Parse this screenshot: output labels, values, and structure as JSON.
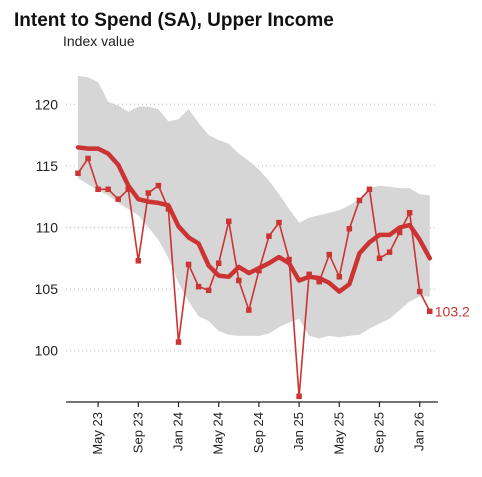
{
  "chart_data": {
    "type": "line",
    "title": "Intent to Spend (SA), Upper Income",
    "ylabel": "Index value",
    "ylim": [
      96,
      124
    ],
    "yticks": [
      100,
      105,
      110,
      115,
      120
    ],
    "xticks": [
      "May 23",
      "Sep 23",
      "Jan 24",
      "May 24",
      "Sep 24",
      "Jan 25",
      "May 25",
      "Sep 25",
      "Jan 26"
    ],
    "x": [
      "Mar 23",
      "Apr 23",
      "May 23",
      "Jun 23",
      "Jul 23",
      "Aug 23",
      "Sep 23",
      "Oct 23",
      "Nov 23",
      "Dec 23",
      "Jan 24",
      "Feb 24",
      "Mar 24",
      "Apr 24",
      "May 24",
      "Jun 24",
      "Jul 24",
      "Aug 24",
      "Sep 24",
      "Oct 24",
      "Nov 24",
      "Dec 24",
      "Jan 25",
      "Feb 25",
      "Mar 25",
      "Apr 25",
      "May 25",
      "Jun 25",
      "Jul 25",
      "Aug 25",
      "Sep 25",
      "Oct 25",
      "Nov 25",
      "Dec 25",
      "Jan 26",
      "Feb 26"
    ],
    "series": [
      {
        "role": "monthly",
        "marker": "square",
        "values": [
          114.4,
          115.6,
          113.1,
          113.1,
          112.3,
          113.1,
          107.3,
          112.8,
          113.4,
          111.5,
          100.7,
          107.0,
          105.2,
          104.9,
          107.1,
          110.5,
          105.7,
          103.3,
          106.5,
          109.3,
          110.4,
          107.4,
          96.3,
          106.2,
          105.6,
          107.8,
          106.0,
          109.9,
          112.2,
          113.1,
          107.5,
          108.0,
          109.6,
          111.2,
          104.8,
          103.2
        ]
      },
      {
        "role": "moving-average",
        "values": [
          116.5,
          116.4,
          116.4,
          116.0,
          115.1,
          113.4,
          112.3,
          112.1,
          112.0,
          111.8,
          110.1,
          109.2,
          108.7,
          106.9,
          106.1,
          106.0,
          106.8,
          106.3,
          106.7,
          107.1,
          107.6,
          107.1,
          105.7,
          106.0,
          105.9,
          105.5,
          104.8,
          105.4,
          107.9,
          108.8,
          109.4,
          109.4,
          110.0,
          110.2,
          109.0,
          107.5
        ]
      },
      {
        "role": "range-band",
        "lower": [
          114.0,
          113.5,
          113.0,
          112.6,
          112.0,
          111.5,
          111.0,
          110.0,
          109.0,
          107.5,
          105.5,
          104.0,
          102.8,
          102.4,
          101.6,
          101.3,
          101.2,
          101.2,
          101.2,
          101.4,
          101.9,
          102.3,
          102.6,
          101.2,
          101.0,
          101.2,
          101.1,
          101.2,
          101.3,
          101.8,
          102.2,
          102.6,
          103.3,
          104.0,
          104.4,
          104.4
        ],
        "upper": [
          122.3,
          122.2,
          121.8,
          120.2,
          119.9,
          119.4,
          119.8,
          119.8,
          119.6,
          118.6,
          118.8,
          119.6,
          118.5,
          117.5,
          117.1,
          116.8,
          116.0,
          115.4,
          114.7,
          113.8,
          112.7,
          111.5,
          110.4,
          110.8,
          111.0,
          111.2,
          111.4,
          111.8,
          112.3,
          113.2,
          113.4,
          113.3,
          113.2,
          113.2,
          112.7,
          112.6
        ]
      }
    ],
    "end_label": "103.2",
    "grid": "horizontal dotted",
    "colors": {
      "line": "#cc3333",
      "band": "#d6d6d6",
      "grid": "#bbbbbb"
    }
  }
}
